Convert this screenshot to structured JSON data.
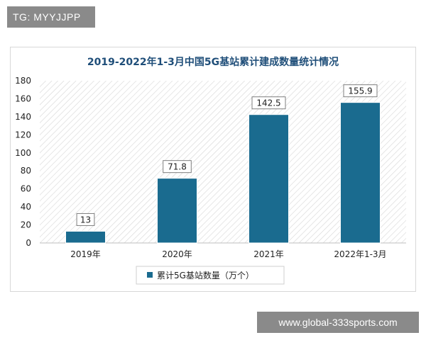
{
  "watermarks": {
    "top": "TG: MYYJJPP",
    "bottom": "www.global-333sports.com"
  },
  "colors": {
    "bar": "#1a6b8f",
    "title": "#1f4e79",
    "hatch": "#d0d0d0",
    "axis": "#bfbfbf"
  },
  "chart_data": {
    "type": "bar",
    "title": "2019-2022年1-3月中国5G基站累计建成数量统计情况",
    "categories": [
      "2019年",
      "2020年",
      "2021年",
      "2022年1-3月"
    ],
    "series": [
      {
        "name": "累计5G基站数量（万个）",
        "values": [
          13,
          71.8,
          142.5,
          155.9
        ]
      }
    ],
    "data_labels": [
      "13",
      "71.8",
      "142.5",
      "155.9"
    ],
    "ylim": [
      0,
      180
    ],
    "yticks": [
      "0",
      "20",
      "40",
      "60",
      "80",
      "100",
      "120",
      "140",
      "160",
      "180"
    ],
    "xlabel": "",
    "ylabel": "",
    "legend": "bottom",
    "grid": false
  }
}
